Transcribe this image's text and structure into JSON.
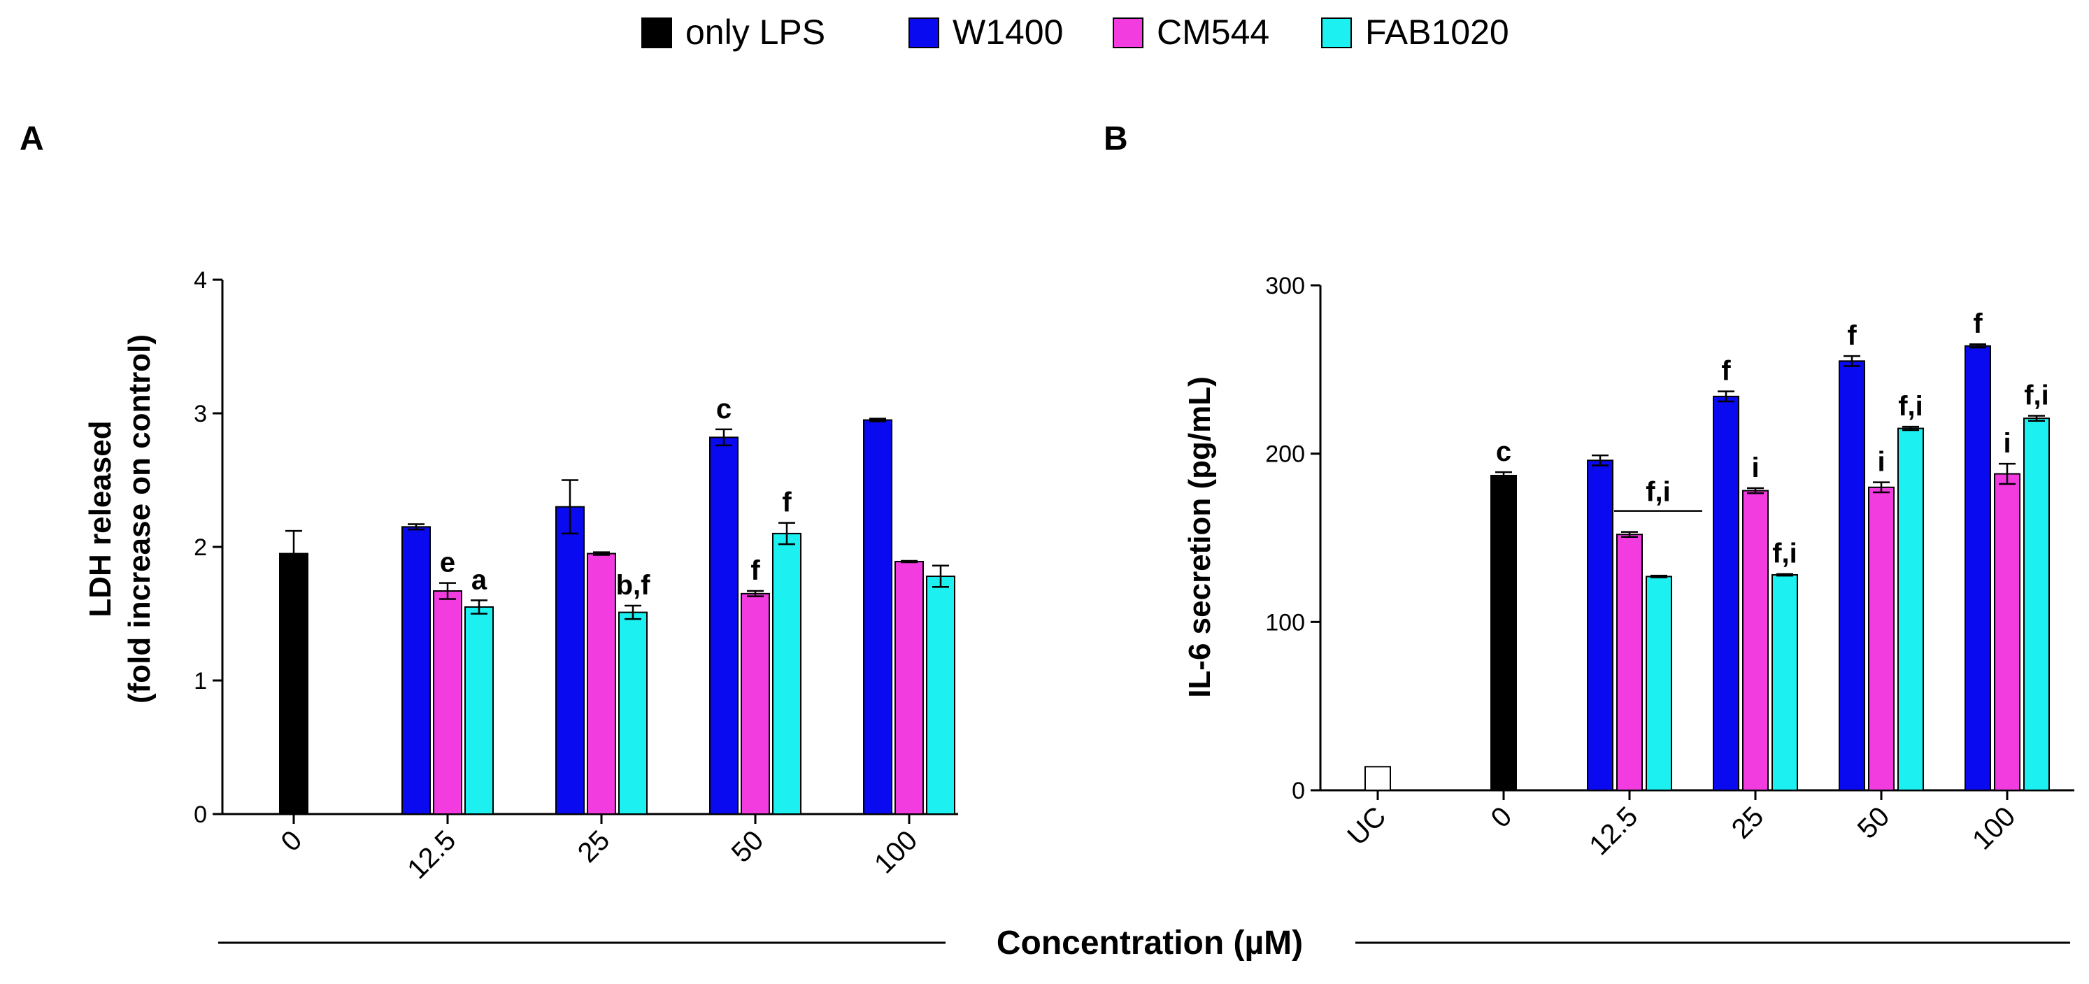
{
  "legend": [
    {
      "name": "only LPS",
      "color": "#000000"
    },
    {
      "name": "W1400",
      "color": "#0a0af0"
    },
    {
      "name": "CM544",
      "color": "#f23ce0"
    },
    {
      "name": "FAB1020",
      "color": "#1cf0f0"
    }
  ],
  "shared_xlabel": "Concentration (µM)",
  "chart_data": [
    {
      "type": "bar",
      "panel": "A",
      "ylabel_line1": "LDH released",
      "ylabel_line2": "(fold increase on control)",
      "ylim": [
        0,
        4
      ],
      "yticks": [
        "0",
        "1",
        "2",
        "3",
        "4"
      ],
      "categories": [
        "0",
        "12.5",
        "25",
        "50",
        "100"
      ],
      "series": [
        {
          "name": "only LPS",
          "values": [
            1.95,
            null,
            null,
            null,
            null
          ],
          "errors": [
            0.17,
            null,
            null,
            null,
            null
          ]
        },
        {
          "name": "W1400",
          "values": [
            null,
            2.15,
            2.3,
            2.82,
            2.95
          ],
          "errors": [
            null,
            0.02,
            0.2,
            0.06,
            0.01
          ]
        },
        {
          "name": "CM544",
          "values": [
            null,
            1.67,
            1.95,
            1.65,
            1.89
          ],
          "errors": [
            null,
            0.06,
            0.01,
            0.02,
            0.005
          ]
        },
        {
          "name": "FAB1020",
          "values": [
            null,
            1.55,
            1.51,
            2.1,
            1.78
          ],
          "errors": [
            null,
            0.05,
            0.05,
            0.08,
            0.08
          ]
        }
      ],
      "annotations": [
        {
          "text": "e",
          "category": "12.5",
          "series": "CM544"
        },
        {
          "text": "a",
          "category": "12.5",
          "series": "FAB1020"
        },
        {
          "text": "b,f",
          "category": "25",
          "series": "FAB1020"
        },
        {
          "text": "c",
          "category": "50",
          "series": "W1400"
        },
        {
          "text": "f",
          "category": "50",
          "series": "CM544"
        },
        {
          "text": "f",
          "category": "50",
          "series": "FAB1020"
        }
      ]
    },
    {
      "type": "bar",
      "panel": "B",
      "ylabel": "IL-6 secretion (pg/mL)",
      "ylim": [
        0,
        300
      ],
      "yticks": [
        "0",
        "100",
        "200",
        "300"
      ],
      "categories": [
        "UC",
        "0",
        "12.5",
        "25",
        "50",
        "100"
      ],
      "series": [
        {
          "name": "untreated control",
          "values": [
            14,
            null,
            null,
            null,
            null,
            null
          ],
          "errors": [
            0,
            null,
            null,
            null,
            null,
            null
          ]
        },
        {
          "name": "only LPS",
          "values": [
            null,
            187,
            null,
            null,
            null,
            null
          ],
          "errors": [
            null,
            2,
            null,
            null,
            null,
            null
          ]
        },
        {
          "name": "W1400",
          "values": [
            null,
            null,
            196,
            234,
            255,
            264
          ],
          "errors": [
            null,
            null,
            3,
            3,
            3,
            1
          ]
        },
        {
          "name": "CM544",
          "values": [
            null,
            null,
            152,
            178,
            180,
            188
          ],
          "errors": [
            null,
            null,
            1.5,
            1.5,
            3,
            6
          ]
        },
        {
          "name": "FAB1020",
          "values": [
            null,
            null,
            127,
            128,
            215,
            221
          ],
          "errors": [
            null,
            null,
            0.5,
            0.5,
            1,
            1.5
          ]
        }
      ],
      "annotations": [
        {
          "text": "c",
          "category": "0",
          "series": "only LPS"
        },
        {
          "text": "f,i",
          "category": "12.5",
          "series": "bracket"
        },
        {
          "text": "f",
          "category": "25",
          "series": "W1400"
        },
        {
          "text": "i",
          "category": "25",
          "series": "CM544"
        },
        {
          "text": "f,i",
          "category": "25",
          "series": "FAB1020"
        },
        {
          "text": "f",
          "category": "50",
          "series": "W1400"
        },
        {
          "text": "i",
          "category": "50",
          "series": "CM544"
        },
        {
          "text": "f,i",
          "category": "50",
          "series": "FAB1020"
        },
        {
          "text": "f",
          "category": "100",
          "series": "W1400"
        },
        {
          "text": "i",
          "category": "100",
          "series": "CM544"
        },
        {
          "text": "f,i",
          "category": "100",
          "series": "FAB1020"
        }
      ]
    }
  ]
}
